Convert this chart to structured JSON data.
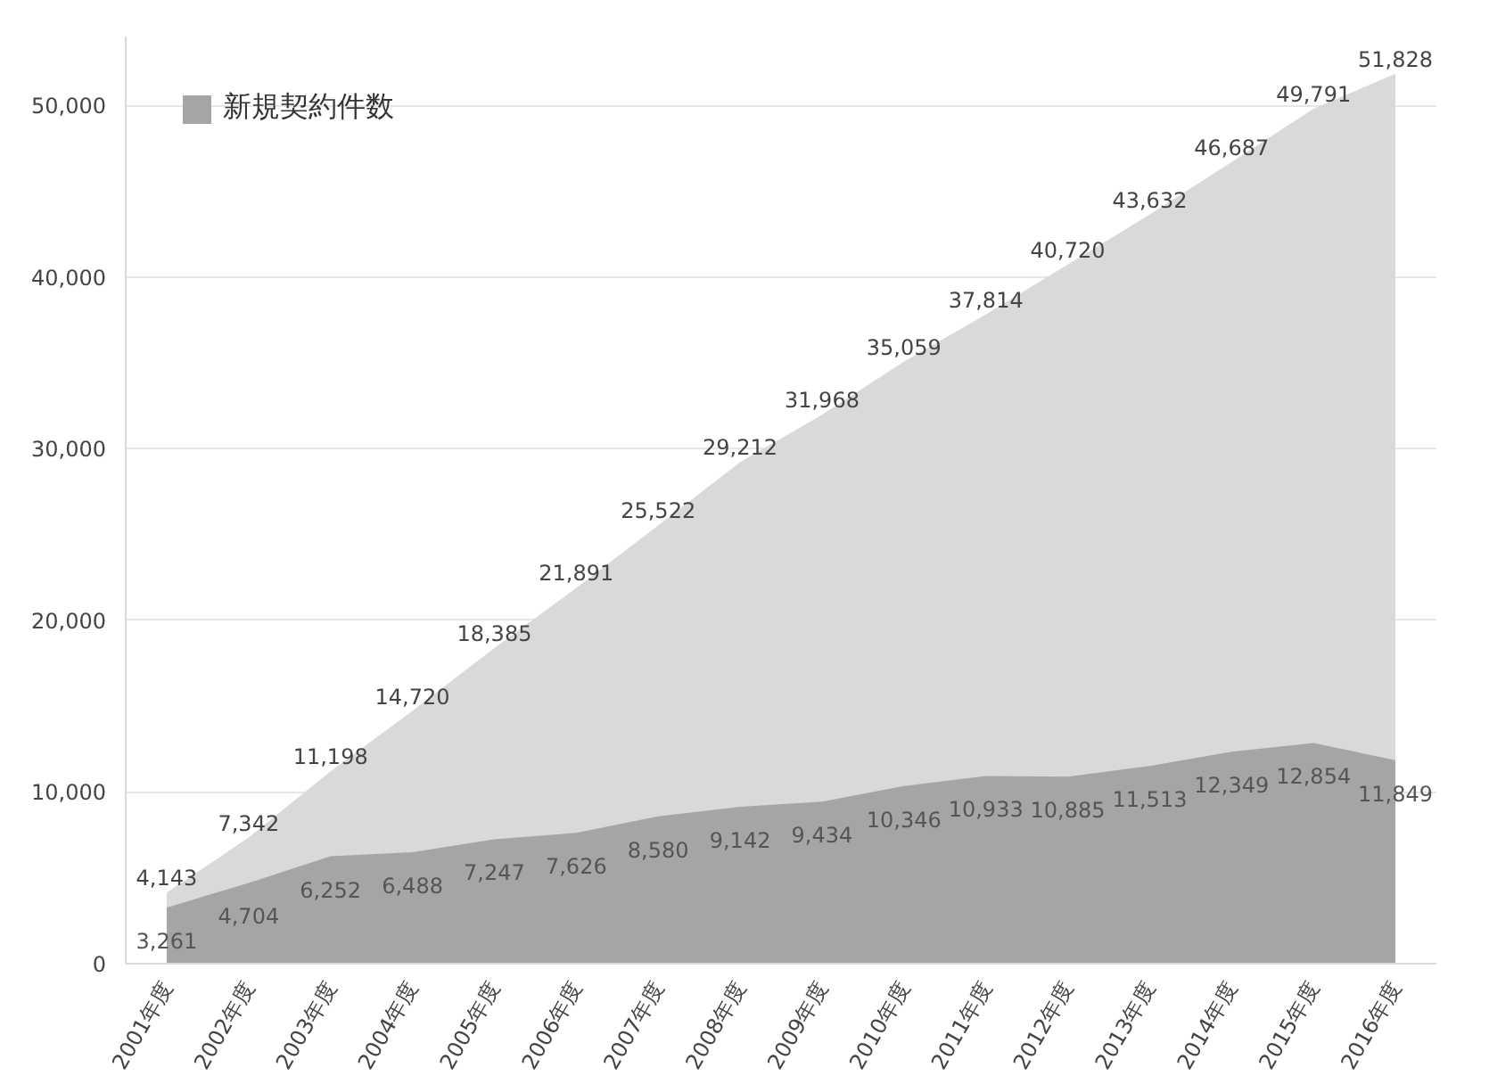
{
  "chart_data": {
    "type": "area",
    "categories": [
      "2001年度",
      "2002年度",
      "2003年度",
      "2004年度",
      "2005年度",
      "2006年度",
      "2007年度",
      "2008年度",
      "2009年度",
      "2010年度",
      "2011年度",
      "2012年度",
      "2013年度",
      "2014年度",
      "2015年度",
      "2016年度"
    ],
    "series": [
      {
        "color": "#d9d9db",
        "values": [
          4143,
          7342,
          11198,
          14720,
          18385,
          21891,
          25522,
          29212,
          31968,
          35059,
          37814,
          40720,
          43632,
          46687,
          49791,
          51828
        ],
        "value_labels": [
          "4,143",
          "7,342",
          "11,198",
          "14,720",
          "18,385",
          "21,891",
          "25,522",
          "29,212",
          "31,968",
          "35,059",
          "37,814",
          "40,720",
          "43,632",
          "46,687",
          "49,791",
          "51,828"
        ]
      },
      {
        "name": "新規契約件数",
        "color": "#a5a5a8",
        "values": [
          3261,
          4704,
          6252,
          6488,
          7247,
          7626,
          8580,
          9142,
          9434,
          10346,
          10933,
          10885,
          11513,
          12349,
          12854,
          11849
        ],
        "value_labels": [
          "3,261",
          "4,704",
          "6,252",
          "6,488",
          "7,247",
          "7,626",
          "8,580",
          "9,142",
          "9,434",
          "10,346",
          "10,933",
          "10,885",
          "11,513",
          "12,349",
          "12,854",
          "11,849"
        ]
      }
    ],
    "ylim": [
      0,
      54000
    ],
    "yticks": [
      {
        "value": 0,
        "label": "0"
      },
      {
        "value": 10000,
        "label": "10,000"
      },
      {
        "value": 20000,
        "label": "20,000"
      },
      {
        "value": 30000,
        "label": "30,000"
      },
      {
        "value": 40000,
        "label": "40,000"
      },
      {
        "value": 50000,
        "label": "50,000"
      }
    ],
    "grid": "y",
    "legend": "top left"
  }
}
